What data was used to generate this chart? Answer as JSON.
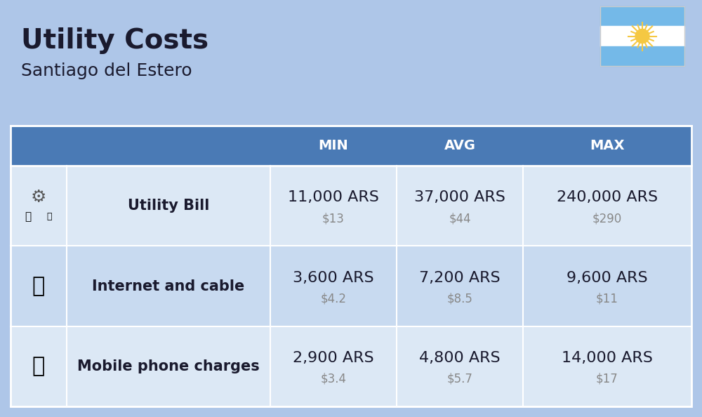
{
  "title": "Utility Costs",
  "subtitle": "Santiago del Estero",
  "background_color": "#aec6e8",
  "header_color": "#4a7ab5",
  "header_text_color": "#ffffff",
  "row_colors": [
    "#dce8f5",
    "#c8daf0"
  ],
  "col_header_labels": [
    "MIN",
    "AVG",
    "MAX"
  ],
  "rows": [
    {
      "label": "Utility Bill",
      "min_ars": "11,000 ARS",
      "min_usd": "$13",
      "avg_ars": "37,000 ARS",
      "avg_usd": "$44",
      "max_ars": "240,000 ARS",
      "max_usd": "$290",
      "icon": "utility"
    },
    {
      "label": "Internet and cable",
      "min_ars": "3,600 ARS",
      "min_usd": "$4.2",
      "avg_ars": "7,200 ARS",
      "avg_usd": "$8.5",
      "max_ars": "9,600 ARS",
      "max_usd": "$11",
      "icon": "internet"
    },
    {
      "label": "Mobile phone charges",
      "min_ars": "2,900 ARS",
      "min_usd": "$3.4",
      "avg_ars": "4,800 ARS",
      "avg_usd": "$5.7",
      "max_ars": "14,000 ARS",
      "max_usd": "$17",
      "icon": "mobile"
    }
  ],
  "text_color_main": "#1a1a2e",
  "text_color_usd": "#888888",
  "title_fontsize": 28,
  "subtitle_fontsize": 18,
  "header_fontsize": 14,
  "cell_fontsize_main": 16,
  "cell_fontsize_usd": 12,
  "label_fontsize": 15
}
